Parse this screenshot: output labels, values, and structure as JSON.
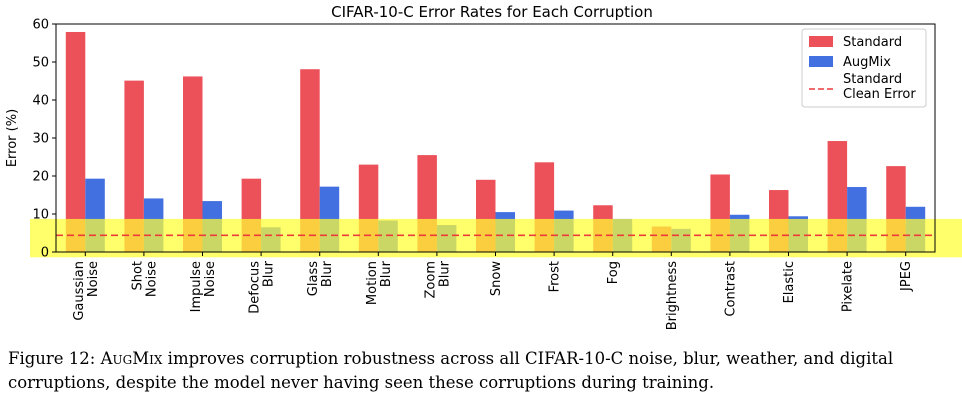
{
  "chart_data": {
    "type": "bar",
    "title": "CIFAR-10-C Error Rates for Each Corruption",
    "ylabel": "Error (%)",
    "xlabel": "",
    "ylim": [
      0,
      60
    ],
    "yticks": [
      0,
      10,
      20,
      30,
      40,
      50,
      60
    ],
    "grid": false,
    "legend_position": "top-right",
    "categories": [
      [
        "Gaussian",
        "Noise"
      ],
      [
        "Shot",
        "Noise"
      ],
      [
        "Impulse",
        "Noise"
      ],
      [
        "Defocus",
        "Blur"
      ],
      [
        "Glass",
        "Blur"
      ],
      [
        "Motion",
        "Blur"
      ],
      [
        "Zoom",
        "Blur"
      ],
      [
        "Snow"
      ],
      [
        "Frost"
      ],
      [
        "Fog"
      ],
      [
        "Brightness"
      ],
      [
        "Contrast"
      ],
      [
        "Elastic"
      ],
      [
        "Pixelate"
      ],
      [
        "JPEG"
      ]
    ],
    "series": [
      {
        "name": "Standard",
        "color": "#ec5159",
        "values": [
          57.9,
          45.1,
          46.2,
          19.3,
          48.1,
          23.0,
          25.5,
          19.0,
          23.6,
          12.3,
          6.7,
          20.4,
          16.3,
          29.2,
          22.6
        ]
      },
      {
        "name": "AugMix",
        "color": "#4370e0",
        "values": [
          19.3,
          14.1,
          13.4,
          6.5,
          17.2,
          8.3,
          7.1,
          10.5,
          10.9,
          8.7,
          6.1,
          9.8,
          9.4,
          17.1,
          11.9
        ]
      }
    ],
    "reference_line": {
      "name": [
        "Standard",
        "Clean Error"
      ],
      "value": 4.4,
      "color": "#ec3b3b",
      "style": "dashed"
    },
    "highlight_band": {
      "from": -1.4,
      "to": 8.7,
      "color": "#ffff33"
    }
  },
  "caption": {
    "label": "Figure 12:",
    "method": "AugMix",
    "text": " improves corruption robustness across all CIFAR-10-C noise, blur, weather, and digital corruptions, despite the model never having seen these corruptions during training."
  }
}
